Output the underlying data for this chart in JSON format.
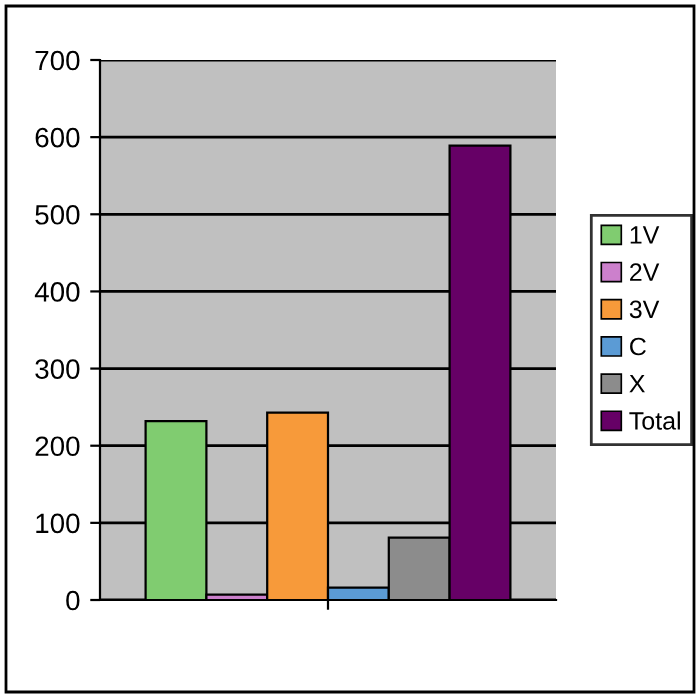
{
  "chart_data": {
    "type": "bar",
    "categories": [
      null
    ],
    "series": [
      {
        "name": "1V",
        "color": "#80cc70",
        "values": [
          232
        ]
      },
      {
        "name": "2V",
        "color": "#cc80cc",
        "values": [
          7
        ]
      },
      {
        "name": "3V",
        "color": "#f79a3a",
        "values": [
          243
        ]
      },
      {
        "name": "C",
        "color": "#5b9bd5",
        "values": [
          16
        ]
      },
      {
        "name": "X",
        "color": "#8c8c8c",
        "values": [
          81
        ]
      },
      {
        "name": "Total",
        "color": "#660066",
        "values": [
          589
        ]
      }
    ],
    "ylim": [
      0,
      700
    ],
    "yticks": [
      0,
      100,
      200,
      300,
      400,
      500,
      600,
      700
    ],
    "grid": "y",
    "legend": "right"
  }
}
